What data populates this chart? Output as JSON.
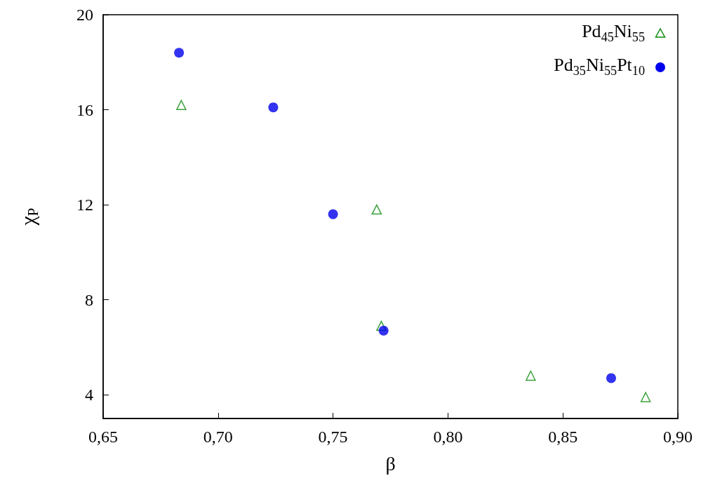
{
  "chart_data": {
    "type": "scatter",
    "xlabel": "β",
    "ylabel": "χ$_{P}$",
    "series": [
      {
        "name": "Pd$_{45}$Ni$_{55}$",
        "color": "#0a8a0a",
        "marker": "triangle",
        "x": [
          0.684,
          0.769,
          0.771,
          0.836,
          0.886
        ],
        "values": [
          16.2,
          11.8,
          6.9,
          4.8,
          3.9
        ]
      },
      {
        "name": "Pd$_{35}$Ni$_{55}$Pt$_{10}$",
        "color": "#0000ee",
        "marker": "circle",
        "x": [
          0.683,
          0.724,
          0.75,
          0.772,
          0.871
        ],
        "values": [
          18.4,
          16.1,
          11.6,
          6.7,
          4.7
        ]
      }
    ],
    "xlim": [
      0.65,
      0.9
    ],
    "xticks": [
      {
        "value": 0.65,
        "label": "0,65"
      },
      {
        "value": 0.7,
        "label": "0,70"
      },
      {
        "value": 0.75,
        "label": "0,75"
      },
      {
        "value": 0.8,
        "label": "0,80"
      },
      {
        "value": 0.85,
        "label": "0,85"
      },
      {
        "value": 0.9,
        "label": "0,90"
      }
    ],
    "ylim": [
      3,
      20
    ],
    "yticks": [
      4,
      8,
      12,
      16,
      20
    ],
    "grid": false,
    "legend": "top right"
  }
}
